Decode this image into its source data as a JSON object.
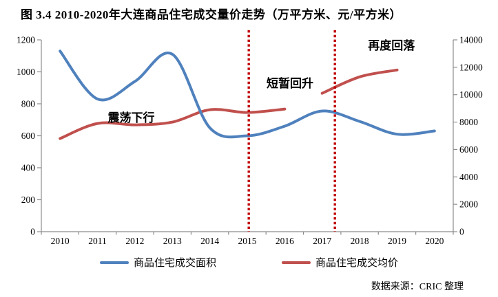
{
  "title": "图 3.4  2010-2020年大连商品住宅成交量价走势（万平方米、元/平方米）",
  "source_note": "数据来源：CRIC 整理",
  "colors": {
    "area_line": "#4F81BD",
    "price_line": "#C0504D",
    "event_line": "#C00000",
    "axis_line": "#8C8C8C",
    "text": "#000000"
  },
  "legend": {
    "items": [
      {
        "label": "商品住宅成交面积",
        "color": "#4F81BD"
      },
      {
        "label": "商品住宅成交均价",
        "color": "#C0504D"
      }
    ]
  },
  "chart_data": {
    "type": "line",
    "categories": [
      "2010",
      "2011",
      "2012",
      "2013",
      "2014",
      "2015",
      "2016",
      "2017",
      "2018",
      "2019",
      "2020"
    ],
    "series": [
      {
        "name": "商品住宅成交面积",
        "axis": "left",
        "color": "#4F81BD",
        "smooth": true,
        "segments": [
          {
            "start_index": 0,
            "values": [
              1130,
              830,
              940,
              1110,
              650,
              600,
              660,
              755,
              690,
              610,
              630
            ]
          }
        ]
      },
      {
        "name": "商品住宅成交均价",
        "axis": "right",
        "color": "#C0504D",
        "smooth": true,
        "segments": [
          {
            "start_index": 0,
            "values": [
              6800,
              7900,
              7800,
              8000,
              8900,
              8700,
              8950
            ]
          },
          {
            "start_index": 7,
            "values": [
              10100,
              11300,
              11800
            ]
          }
        ]
      }
    ],
    "y_axis_left": {
      "min": 0,
      "max": 1200,
      "ticks": [
        0,
        200,
        400,
        600,
        800,
        1000,
        1200
      ]
    },
    "y_axis_right": {
      "min": 0,
      "max": 14000,
      "ticks": [
        0,
        2000,
        4000,
        6000,
        8000,
        10000,
        12000,
        14000
      ]
    },
    "grid": false,
    "legend_position": "bottom",
    "event_lines": [
      {
        "x_year": 2015.04
      },
      {
        "x_year": 2017.34
      }
    ],
    "annotations": [
      {
        "text": "震荡下行",
        "x_year": 2011.9,
        "y_left": 714
      },
      {
        "text": "短暂回升",
        "x_year": 2016.14,
        "y_left": 929
      },
      {
        "text": "再度回落",
        "x_year": 2018.85,
        "y_left": 1166
      }
    ]
  }
}
